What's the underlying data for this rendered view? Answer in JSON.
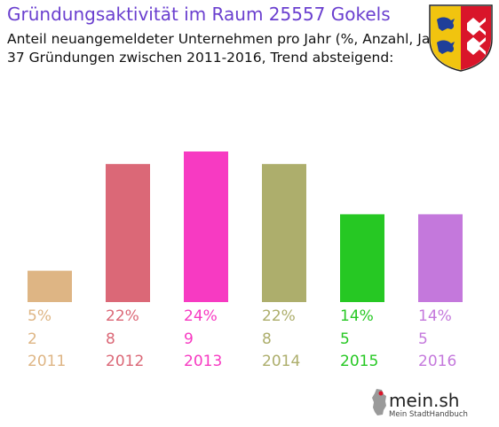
{
  "header": {
    "title": "Gründungsaktivität im Raum 25557 Gokels",
    "subtitle_line1": "Anteil neuangemeldeter Unternehmen pro Jahr (%, Anzahl, Jahr)",
    "subtitle_line2": "37 Gründungen zwischen 2011-2016, Trend absteigend:"
  },
  "chart_data": {
    "type": "bar",
    "title": "Gründungsaktivität im Raum 25557 Gokels",
    "categories": [
      "2011",
      "2012",
      "2013",
      "2014",
      "2015",
      "2016"
    ],
    "percent_labels": [
      "5%",
      "22%",
      "24%",
      "22%",
      "14%",
      "14%"
    ],
    "counts": [
      2,
      8,
      9,
      8,
      5,
      5
    ],
    "values": [
      5,
      22,
      24,
      22,
      14,
      14
    ],
    "colors": [
      "#deb584",
      "#db6877",
      "#f73ac2",
      "#adae6c",
      "#26c823",
      "#c478dc"
    ],
    "grid": false,
    "legend": "none"
  },
  "branding": {
    "logo_text": "mein.sh",
    "logo_tagline": "Mein StadtHandbuch",
    "coat_of_arms": "schleswig-holstein-coat-of-arms-icon",
    "map_icon": "germany-map-icon"
  }
}
